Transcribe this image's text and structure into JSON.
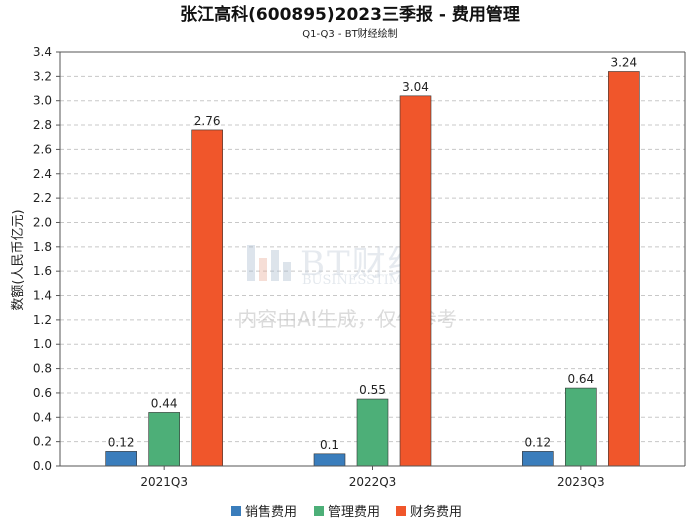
{
  "colors": {
    "销售费用": "#3a7dbc",
    "管理费用": "#4daf78",
    "财务费用": "#f0562b"
  },
  "watermark": {
    "brand": "BT财经",
    "brand_en": "BUSINESSTIMES",
    "notice": "内容由AI生成，仅供参考"
  },
  "chart_data": {
    "type": "bar",
    "title": "张江高科(600895)2023三季报 - 费用管理",
    "subtitle": "Q1-Q3 - BT财经绘制",
    "ylabel": "数额(人民币亿元)",
    "xlabel": "",
    "categories": [
      "2021Q3",
      "2022Q3",
      "2023Q3"
    ],
    "series": [
      {
        "name": "销售费用",
        "values": [
          0.12,
          0.1,
          0.12
        ],
        "labels": [
          "0.12",
          "0.1",
          "0.12"
        ]
      },
      {
        "name": "管理费用",
        "values": [
          0.44,
          0.55,
          0.64
        ],
        "labels": [
          "0.44",
          "0.55",
          "0.64"
        ]
      },
      {
        "name": "财务费用",
        "values": [
          2.76,
          3.04,
          3.24
        ],
        "labels": [
          "2.76",
          "3.04",
          "3.24"
        ]
      }
    ],
    "ylim": [
      0,
      3.4
    ],
    "yticks": [
      "0.0",
      "0.2",
      "0.4",
      "0.6",
      "0.8",
      "1.0",
      "1.2",
      "1.4",
      "1.6",
      "1.8",
      "2.0",
      "2.2",
      "2.4",
      "2.6",
      "2.8",
      "3.0",
      "3.2",
      "3.4"
    ],
    "grid": true,
    "legend": "bottom"
  }
}
